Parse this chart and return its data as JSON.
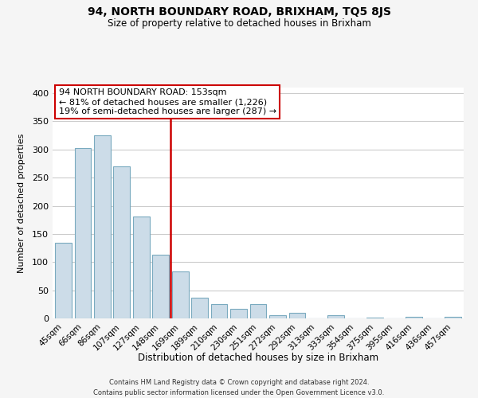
{
  "title": "94, NORTH BOUNDARY ROAD, BRIXHAM, TQ5 8JS",
  "subtitle": "Size of property relative to detached houses in Brixham",
  "xlabel": "Distribution of detached houses by size in Brixham",
  "ylabel": "Number of detached properties",
  "bar_labels": [
    "45sqm",
    "66sqm",
    "86sqm",
    "107sqm",
    "127sqm",
    "148sqm",
    "169sqm",
    "189sqm",
    "210sqm",
    "230sqm",
    "251sqm",
    "272sqm",
    "292sqm",
    "313sqm",
    "333sqm",
    "354sqm",
    "375sqm",
    "395sqm",
    "416sqm",
    "436sqm",
    "457sqm"
  ],
  "bar_values": [
    135,
    303,
    325,
    270,
    181,
    113,
    83,
    37,
    26,
    17,
    25,
    5,
    10,
    0,
    5,
    0,
    2,
    0,
    3,
    0,
    3
  ],
  "bar_color": "#ccdce8",
  "bar_edge_color": "#7aaabf",
  "vline_index": 5.5,
  "vline_color": "#cc0000",
  "annotation_line1": "94 NORTH BOUNDARY ROAD: 153sqm",
  "annotation_line2": "← 81% of detached houses are smaller (1,226)",
  "annotation_line3": "19% of semi-detached houses are larger (287) →",
  "annotation_box_color": "white",
  "annotation_box_edge": "#cc0000",
  "ylim": [
    0,
    410
  ],
  "yticks": [
    0,
    50,
    100,
    150,
    200,
    250,
    300,
    350,
    400
  ],
  "footer_line1": "Contains HM Land Registry data © Crown copyright and database right 2024.",
  "footer_line2": "Contains public sector information licensed under the Open Government Licence v3.0.",
  "fig_bg_color": "#f5f5f5",
  "plot_bg_color": "white",
  "grid_color": "#cccccc"
}
